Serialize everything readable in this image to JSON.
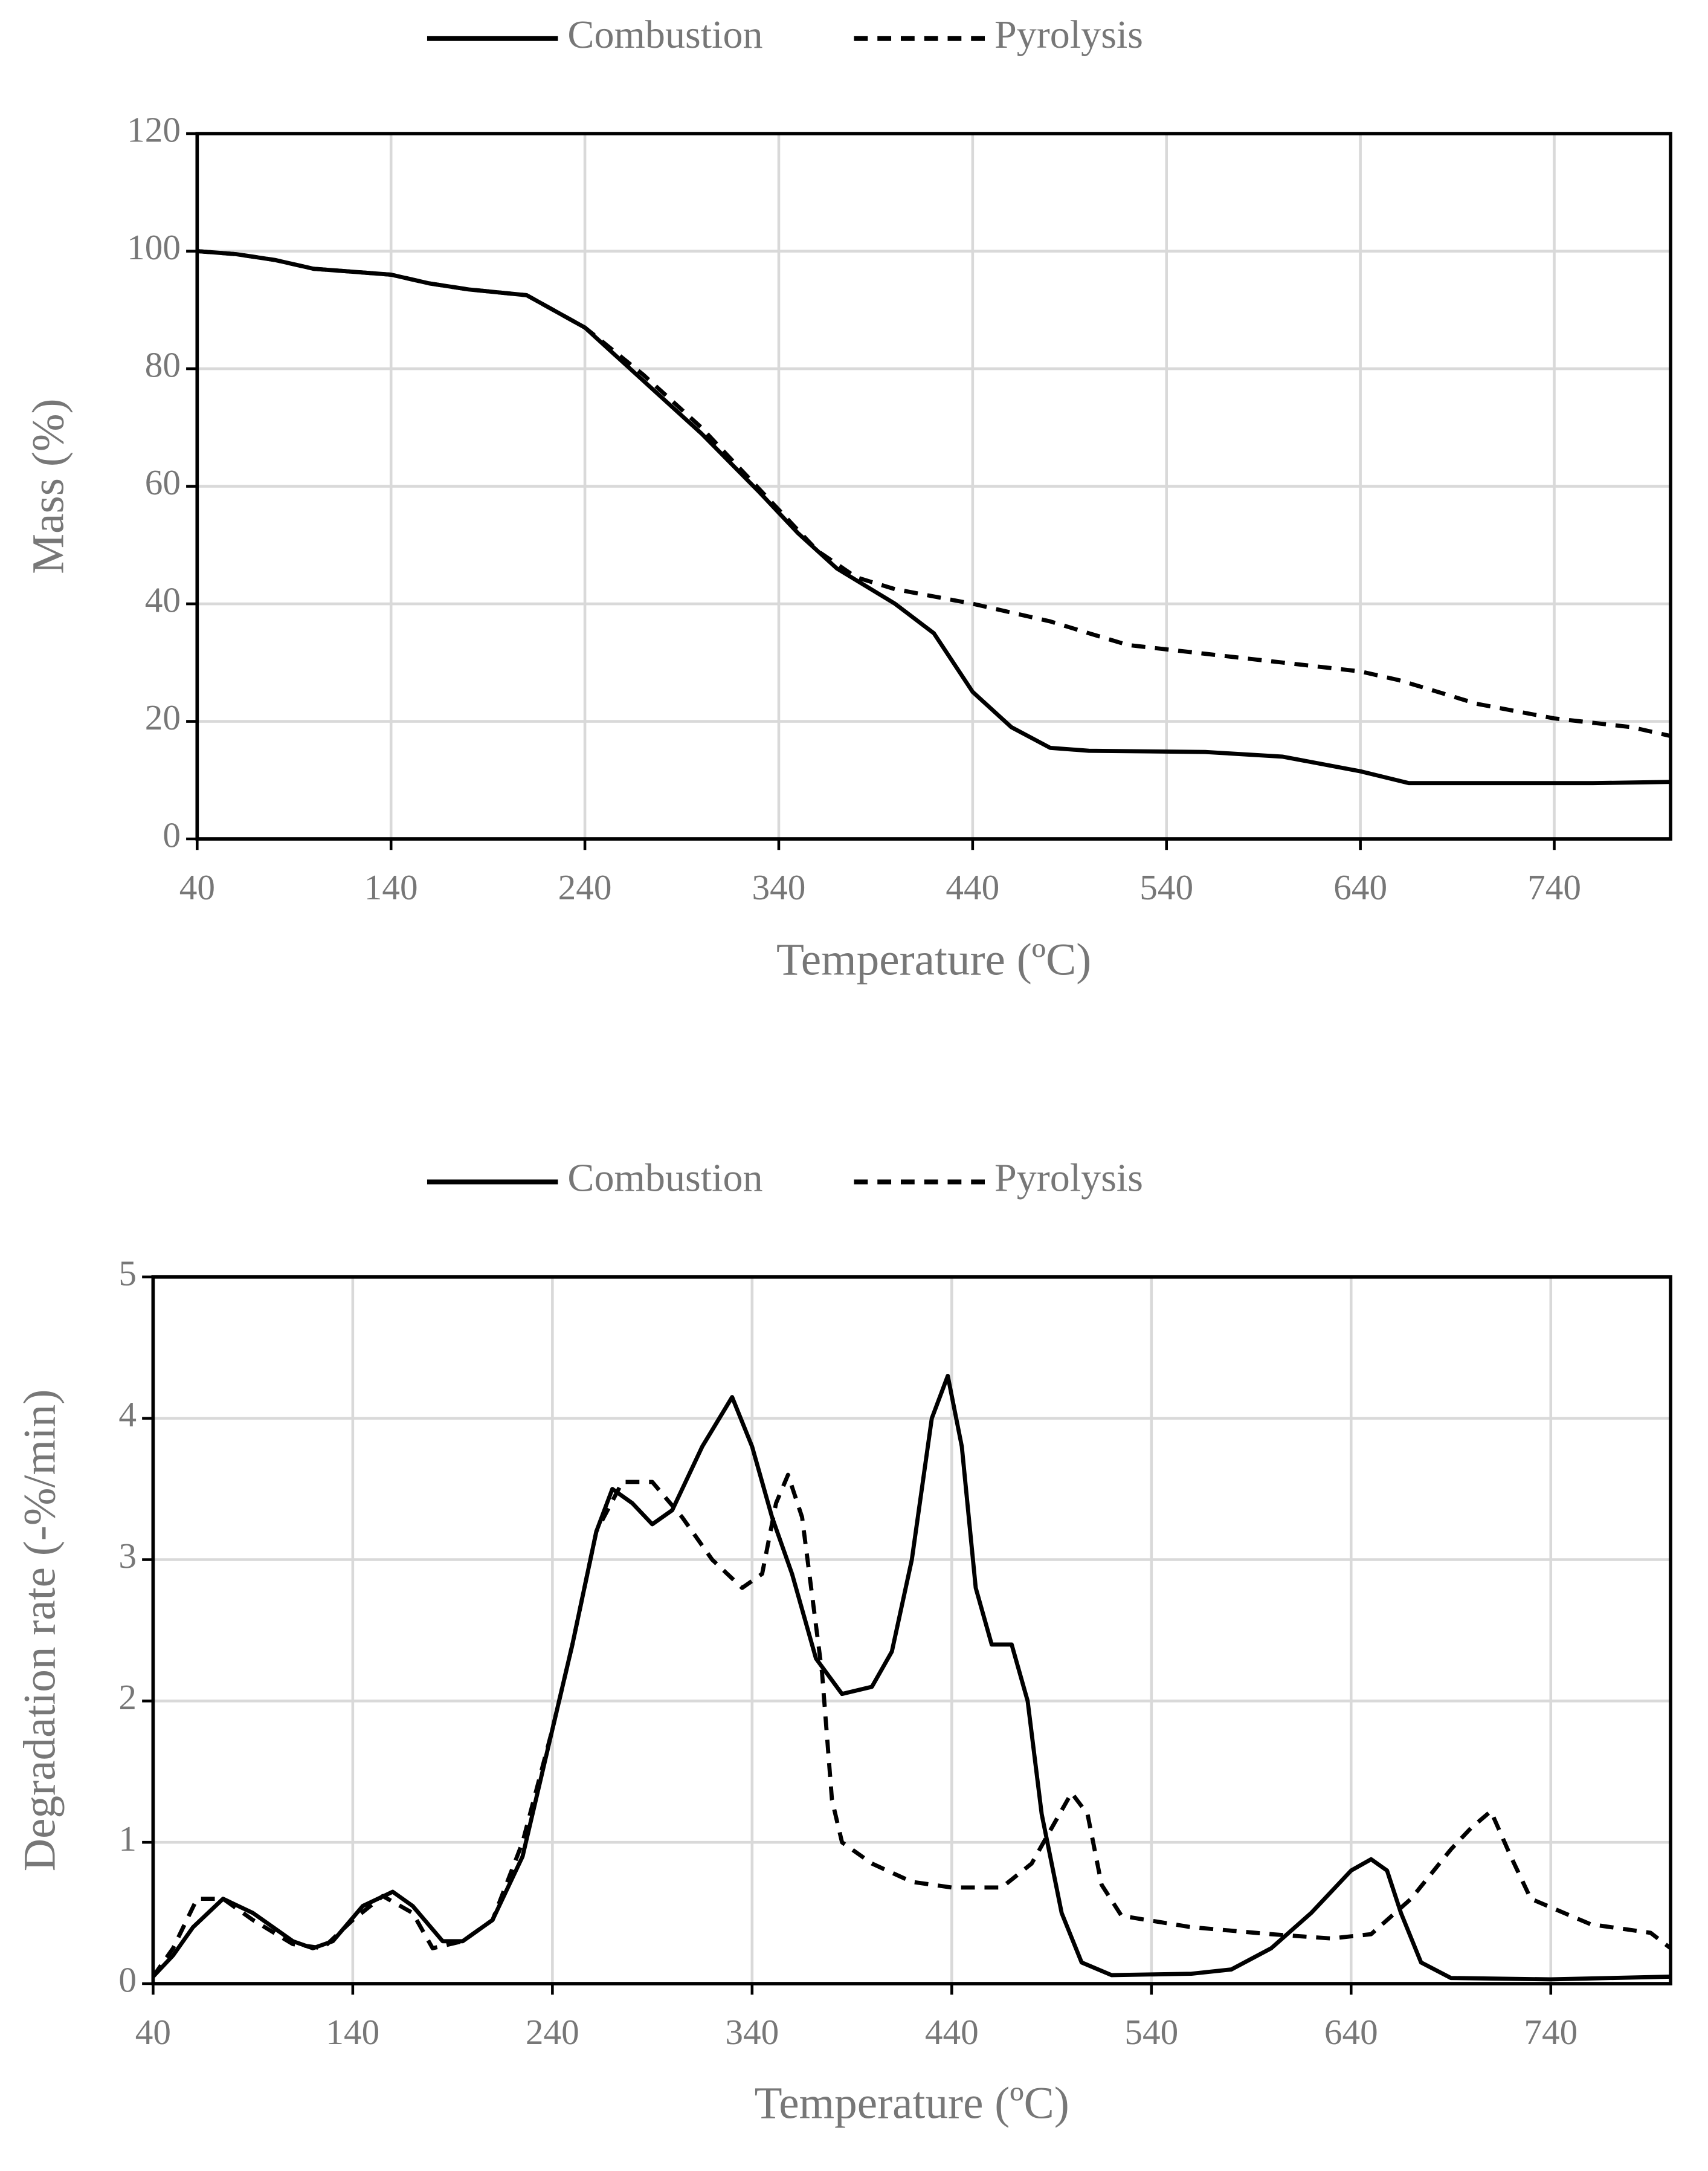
{
  "chart_data": [
    {
      "type": "line",
      "xlabel": "Temperature (ºC)",
      "ylabel": "Mass (%)",
      "xlim": [
        40,
        800
      ],
      "xticks": [
        40,
        140,
        240,
        340,
        440,
        540,
        640,
        740
      ],
      "ylim": [
        0,
        120
      ],
      "yticks": [
        0,
        20,
        40,
        60,
        80,
        100,
        120
      ],
      "grid": true,
      "legend": "top",
      "series": [
        {
          "name": "Combustion",
          "color": "#000000",
          "line_style": "solid",
          "x": [
            40,
            60,
            80,
            100,
            140,
            160,
            180,
            210,
            240,
            270,
            300,
            330,
            350,
            370,
            400,
            420,
            440,
            460,
            480,
            500,
            560,
            600,
            640,
            665,
            700,
            760,
            800
          ],
          "values": [
            100,
            99.5,
            98.5,
            97,
            96,
            94.5,
            93.5,
            92.5,
            87,
            78,
            69,
            59,
            52,
            46,
            40,
            35,
            25,
            19,
            15.5,
            15,
            14.8,
            14,
            11.5,
            9.5,
            9.5,
            9.5,
            9.7
          ]
        },
        {
          "name": "Pyrolysis",
          "color": "#000000",
          "line_style": "dashed",
          "x": [
            40,
            60,
            80,
            100,
            140,
            160,
            180,
            210,
            240,
            270,
            300,
            320,
            340,
            360,
            380,
            400,
            440,
            480,
            500,
            520,
            560,
            600,
            640,
            660,
            680,
            700,
            740,
            780,
            800
          ],
          "values": [
            100,
            99.5,
            98.5,
            97,
            96,
            94.5,
            93.5,
            92.5,
            87,
            79,
            70,
            63,
            56,
            49,
            44.5,
            42.5,
            40,
            37,
            35,
            33,
            31.5,
            30,
            28.5,
            27,
            25,
            23,
            20.5,
            19,
            17.5
          ]
        }
      ]
    },
    {
      "type": "line",
      "xlabel": "Temperature (ºC)",
      "ylabel": "Degradation rate (-%/min)",
      "xlim": [
        40,
        800
      ],
      "xticks": [
        40,
        140,
        240,
        340,
        440,
        540,
        640,
        740
      ],
      "ylim": [
        0,
        5
      ],
      "yticks": [
        0,
        1,
        2,
        3,
        4,
        5
      ],
      "grid": true,
      "legend": "top",
      "series": [
        {
          "name": "Combustion",
          "color": "#000000",
          "line_style": "solid",
          "x": [
            40,
            50,
            60,
            75,
            90,
            110,
            120,
            130,
            145,
            160,
            170,
            185,
            195,
            210,
            225,
            240,
            250,
            262,
            270,
            280,
            290,
            300,
            315,
            330,
            340,
            350,
            360,
            372,
            385,
            400,
            410,
            420,
            430,
            438,
            445,
            452,
            460,
            470,
            478,
            485,
            495,
            505,
            520,
            560,
            580,
            600,
            620,
            640,
            650,
            658,
            665,
            675,
            690,
            740,
            800
          ],
          "values": [
            0.05,
            0.2,
            0.4,
            0.6,
            0.5,
            0.3,
            0.25,
            0.3,
            0.55,
            0.65,
            0.55,
            0.3,
            0.3,
            0.45,
            0.9,
            1.8,
            2.4,
            3.2,
            3.5,
            3.4,
            3.25,
            3.35,
            3.8,
            4.15,
            3.8,
            3.3,
            2.9,
            2.3,
            2.05,
            2.1,
            2.35,
            3.0,
            4.0,
            4.3,
            3.8,
            2.8,
            2.4,
            2.4,
            2.0,
            1.2,
            0.5,
            0.15,
            0.06,
            0.07,
            0.1,
            0.25,
            0.5,
            0.8,
            0.88,
            0.8,
            0.5,
            0.15,
            0.04,
            0.03,
            0.05
          ]
        },
        {
          "name": "Pyrolysis",
          "color": "#000000",
          "line_style": "dashed",
          "x": [
            40,
            50,
            62,
            75,
            90,
            110,
            125,
            140,
            155,
            170,
            180,
            195,
            210,
            225,
            240,
            250,
            262,
            275,
            290,
            305,
            320,
            335,
            345,
            352,
            358,
            365,
            375,
            380,
            385,
            400,
            420,
            440,
            465,
            480,
            490,
            500,
            508,
            515,
            525,
            560,
            600,
            630,
            650,
            670,
            690,
            700,
            710,
            720,
            730,
            760,
            790,
            800
          ],
          "values": [
            0.05,
            0.25,
            0.6,
            0.6,
            0.45,
            0.28,
            0.25,
            0.45,
            0.62,
            0.5,
            0.25,
            0.3,
            0.45,
            1.0,
            1.8,
            2.4,
            3.2,
            3.55,
            3.55,
            3.3,
            3.0,
            2.8,
            2.9,
            3.4,
            3.6,
            3.3,
            2.2,
            1.3,
            1.0,
            0.85,
            0.72,
            0.68,
            0.68,
            0.85,
            1.1,
            1.35,
            1.2,
            0.7,
            0.48,
            0.4,
            0.35,
            0.32,
            0.35,
            0.6,
            0.95,
            1.1,
            1.22,
            0.9,
            0.6,
            0.42,
            0.36,
            0.25
          ]
        }
      ]
    }
  ]
}
